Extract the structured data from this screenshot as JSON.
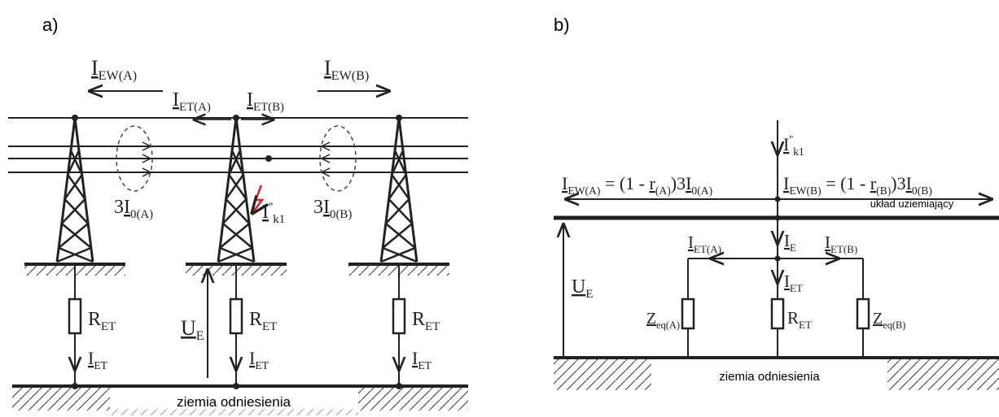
{
  "panel_a": {
    "label": "a)",
    "i_ew_a": {
      "t": "I",
      "u": true,
      "s": "EW(A)"
    },
    "i_ew_b": {
      "t": "I",
      "u": true,
      "s": "EW(B)"
    },
    "i_et_a": {
      "t": "I",
      "u": true,
      "s": "ET(A)"
    },
    "i_et_b": {
      "t": "I",
      "u": true,
      "s": "ET(B)"
    },
    "i0_a": [
      {
        "t": "3"
      },
      {
        "t": "I",
        "u": true,
        "s": "0(A)"
      }
    ],
    "i0_b": [
      {
        "t": "3"
      },
      {
        "t": "I",
        "u": true,
        "s": "0(B)"
      }
    ],
    "i_k1": {
      "t": "I",
      "u": true,
      "p": "''",
      "s": "k1"
    },
    "r_et": [
      {
        "t": "R",
        "s": "ET"
      },
      {
        "t": "R",
        "s": "ET"
      },
      {
        "t": "R",
        "s": "ET"
      }
    ],
    "i_et": [
      {
        "t": "I",
        "u": true,
        "s": "ET"
      },
      {
        "t": "I",
        "u": true,
        "s": "ET"
      },
      {
        "t": "I",
        "u": true,
        "s": "ET"
      }
    ],
    "u_e": {
      "t": "U",
      "u": true,
      "s": "E"
    },
    "ground": "ziemia odniesienia"
  },
  "panel_b": {
    "label": "b)",
    "i_k1": {
      "t": "I",
      "u": true,
      "p": "''",
      "s": "k1"
    },
    "eq_a": [
      {
        "t": "I",
        "u": true,
        "s": "EW(A)"
      },
      {
        "t": " = (1 - "
      },
      {
        "t": "r",
        "u": true,
        "s": "(A)"
      },
      {
        "t": ")3"
      },
      {
        "t": "I",
        "u": true,
        "s": "0(A)"
      }
    ],
    "eq_b": [
      {
        "t": "I",
        "u": true,
        "s": "EW(B)"
      },
      {
        "t": " = (1 - "
      },
      {
        "t": "r",
        "u": true,
        "s": "(B)"
      },
      {
        "t": ")3"
      },
      {
        "t": "I",
        "u": true,
        "s": "0(B)"
      }
    ],
    "grounding": "układ uziemiający",
    "i_e": {
      "t": "I",
      "u": true,
      "s": "E"
    },
    "i_et_a": {
      "t": "I",
      "u": true,
      "s": "ET(A)"
    },
    "i_et_b": {
      "t": "I",
      "u": true,
      "s": "ET(B)"
    },
    "i_et": {
      "t": "I",
      "u": true,
      "s": "ET"
    },
    "r_et": {
      "t": "R",
      "s": "ET"
    },
    "z_a": {
      "t": "Z",
      "u": true,
      "s": "eq(A)"
    },
    "z_b": {
      "t": "Z",
      "u": true,
      "s": "eq(B)"
    },
    "u_e": {
      "t": "U",
      "u": true,
      "s": "E"
    },
    "ground": "ziemia odniesienia"
  }
}
